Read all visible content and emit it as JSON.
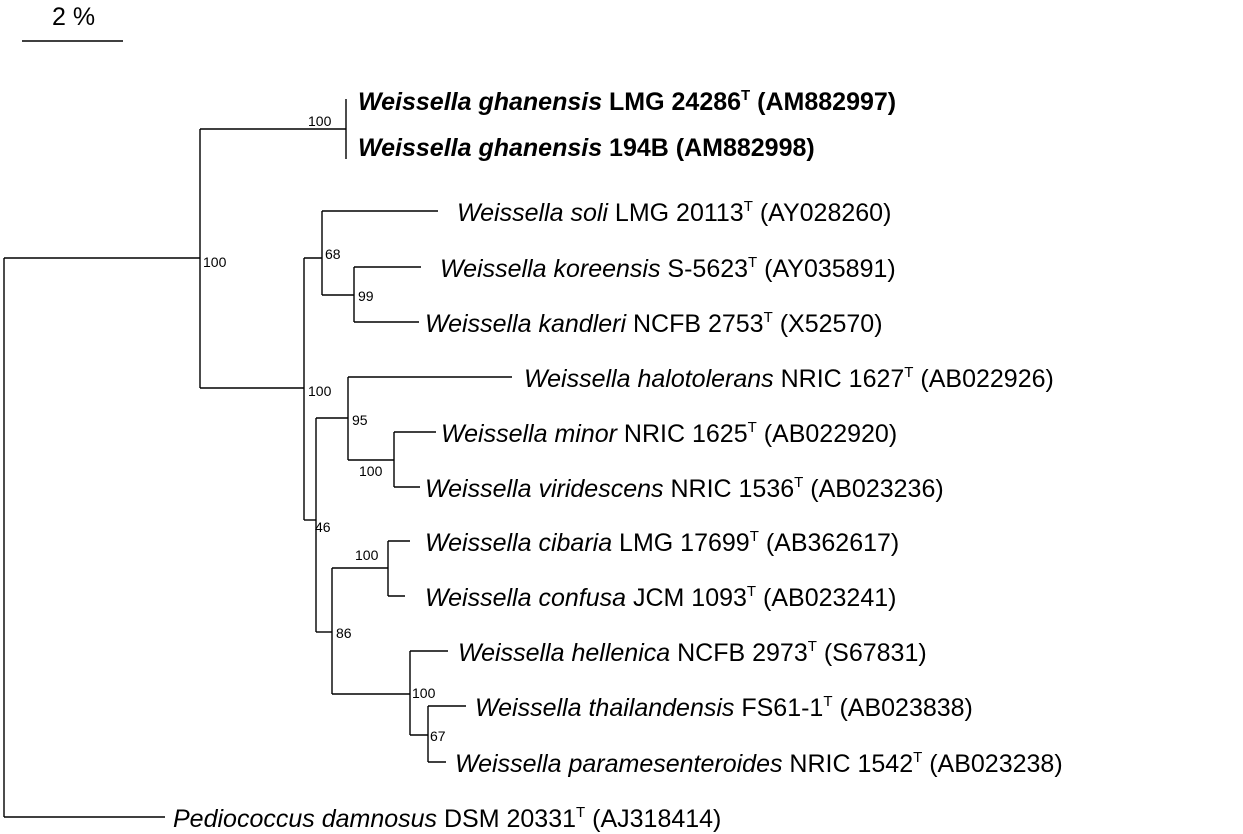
{
  "scale_bar": {
    "label": "2 %"
  },
  "taxa": [
    {
      "genus": "Weissella ghanensis",
      "strain": " LMG 24286",
      "type_strain": true,
      "accession": " (AM882997)",
      "bold": true
    },
    {
      "genus": "Weissella ghanensis",
      "strain": " 194B",
      "type_strain": false,
      "accession": " (AM882998)",
      "bold": true
    },
    {
      "genus": "Weissella soli",
      "strain": " LMG 20113",
      "type_strain": true,
      "accession": " (AY028260)",
      "bold": false
    },
    {
      "genus": "Weissella koreensis",
      "strain": " S-5623",
      "type_strain": true,
      "accession": " (AY035891)",
      "bold": false
    },
    {
      "genus": "Weissella kandleri",
      "strain": " NCFB 2753",
      "type_strain": true,
      "accession": " (X52570)",
      "bold": false
    },
    {
      "genus": "Weissella halotolerans",
      "strain": " NRIC 1627",
      "type_strain": true,
      "accession": " (AB022926)",
      "bold": false
    },
    {
      "genus": "Weissella minor",
      "strain": " NRIC 1625",
      "type_strain": true,
      "accession": " (AB022920)",
      "bold": false
    },
    {
      "genus": "Weissella viridescens",
      "strain": " NRIC 1536",
      "type_strain": true,
      "accession": " (AB023236)",
      "bold": false
    },
    {
      "genus": "Weissella cibaria",
      "strain": " LMG 17699",
      "type_strain": true,
      "accession": " (AB362617)",
      "bold": false
    },
    {
      "genus": "Weissella confusa",
      "strain": " JCM 1093",
      "type_strain": true,
      "accession": " (AB023241)",
      "bold": false
    },
    {
      "genus": "Weissella hellenica",
      "strain": " NCFB 2973",
      "type_strain": true,
      "accession": " (S67831)",
      "bold": false
    },
    {
      "genus": "Weissella thailandensis",
      "strain": " FS61-1",
      "type_strain": true,
      "accession": " (AB023838)",
      "bold": false
    },
    {
      "genus": "Weissella paramesenteroides",
      "strain": " NRIC 1542",
      "type_strain": true,
      "accession": " (AB023238)",
      "bold": false
    },
    {
      "genus": "Pediococcus damnosus",
      "strain": " DSM 20331",
      "type_strain": true,
      "accession": " (AJ318414)",
      "bold": false
    }
  ],
  "type_strain_mark": "T",
  "bootstrap_values": [
    "100",
    "100",
    "68",
    "99",
    "100",
    "95",
    "100",
    "46",
    "100",
    "86",
    "100",
    "67"
  ]
}
